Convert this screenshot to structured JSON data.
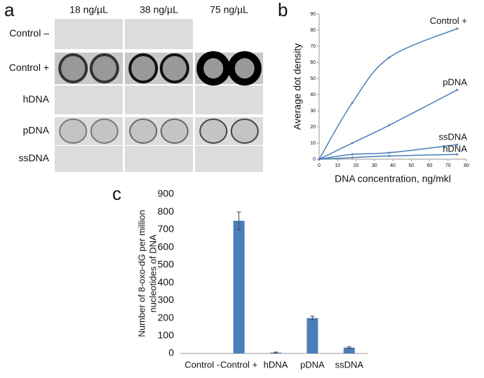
{
  "panel_labels": [
    "a",
    "b",
    "c"
  ],
  "blot": {
    "columns": [
      "18 ng/µL",
      "38 ng/µL",
      "75 ng/µL"
    ],
    "rows": [
      "Control –",
      "Control +",
      "hDNA",
      "pDNA",
      "ssDNA"
    ]
  },
  "chart_data": [
    {
      "type": "line",
      "xlabel": "DNA concentration, ng/mkl",
      "ylabel": "Average dot density",
      "x": [
        0,
        18,
        38,
        75
      ],
      "xlim": [
        0,
        80
      ],
      "xticks": [
        0,
        10,
        20,
        30,
        40,
        50,
        60,
        70,
        80
      ],
      "ylim": [
        0,
        90
      ],
      "yticks": [
        0,
        10,
        20,
        30,
        40,
        50,
        60,
        70,
        80,
        90
      ],
      "series": [
        {
          "name": "Control +",
          "color": "#4a7ebb",
          "values": [
            0,
            35,
            63,
            81
          ]
        },
        {
          "name": "pDNA",
          "color": "#4a7ebb",
          "values": [
            0,
            10,
            21,
            43
          ]
        },
        {
          "name": "ssDNA",
          "color": "#4a7ebb",
          "values": [
            0,
            3,
            4,
            9
          ]
        },
        {
          "name": "hDNA",
          "color": "#4a7ebb",
          "values": [
            0,
            1,
            2,
            3
          ]
        }
      ]
    },
    {
      "type": "bar",
      "ylabel": [
        "Number of 8-oxo-dG per million",
        "nucleotides of DNA"
      ],
      "categories": [
        "Control -",
        "Control +",
        "hDNA",
        "pDNA",
        "ssDNA"
      ],
      "values": [
        0,
        750,
        5,
        200,
        33
      ],
      "errors": [
        null,
        50,
        3,
        10,
        5
      ],
      "color": "#4a7ebb",
      "ylim": [
        0,
        900
      ],
      "yticks": [
        0,
        100,
        200,
        300,
        400,
        500,
        600,
        700,
        800,
        900
      ]
    }
  ]
}
